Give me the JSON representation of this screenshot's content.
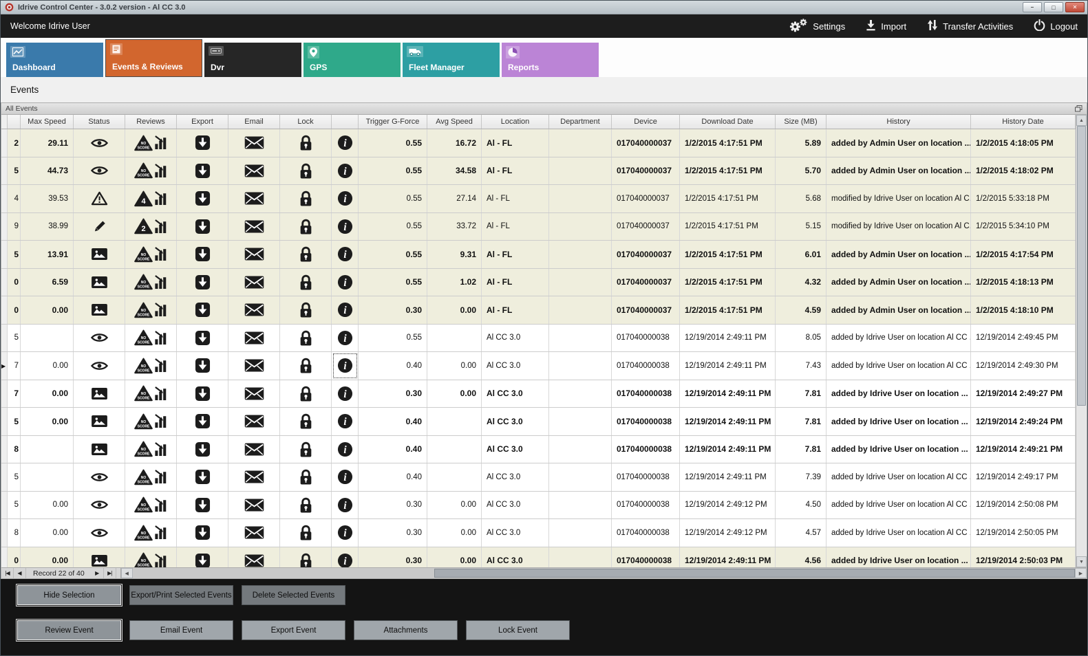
{
  "window": {
    "title": "Idrive Control Center - 3.0.2 version - Al CC 3.0"
  },
  "topbar": {
    "welcome": "Welcome Idrive User",
    "actions": [
      {
        "label": "Settings",
        "icon": "settings-gears-icon"
      },
      {
        "label": "Import",
        "icon": "import-icon"
      },
      {
        "label": "Transfer Activities",
        "icon": "transfer-icon"
      },
      {
        "label": "Logout",
        "icon": "power-icon"
      }
    ]
  },
  "tabs": [
    {
      "label": "Dashboard",
      "color": "#3a7aab",
      "active": false
    },
    {
      "label": "Events & Reviews",
      "color": "#d2662e",
      "active": true
    },
    {
      "label": "Dvr",
      "color": "#262626",
      "active": false
    },
    {
      "label": "GPS",
      "color": "#2fa98a",
      "active": false
    },
    {
      "label": "Fleet Manager",
      "color": "#2d9fa3",
      "active": false
    },
    {
      "label": "Reports",
      "color": "#bb84d6",
      "active": false
    }
  ],
  "page_title": "Events",
  "panel": {
    "title": "All Events"
  },
  "table": {
    "columns": [
      "Max Speed",
      "Status",
      "Reviews",
      "Export",
      "Email",
      "Lock",
      "",
      "Trigger G-Force",
      "Avg Speed",
      "Location",
      "Department",
      "Device",
      "Download Date",
      "Size (MB)",
      "History",
      "History Date"
    ],
    "rows": [
      {
        "e": "2",
        "max": "29.11",
        "st": "eye",
        "rv": "NO SCORE",
        "tg": "0.55",
        "avg": "16.72",
        "loc": "Al - FL",
        "dept": "",
        "dev": "017040000037",
        "dl": "1/2/2015 4:17:51 PM",
        "size": "5.89",
        "hist": "added by Admin User on location ...",
        "hd": "1/2/2015 4:18:05 PM",
        "bold": true,
        "beige": true,
        "cur": false
      },
      {
        "e": "5",
        "max": "44.73",
        "st": "eye",
        "rv": "NO SCORE",
        "tg": "0.55",
        "avg": "34.58",
        "loc": "Al - FL",
        "dept": "",
        "dev": "017040000037",
        "dl": "1/2/2015 4:17:51 PM",
        "size": "5.70",
        "hist": "added by Admin User on location ...",
        "hd": "1/2/2015 4:18:02 PM",
        "bold": true,
        "beige": true,
        "cur": false
      },
      {
        "e": "4",
        "max": "39.53",
        "st": "warning",
        "rv": "4",
        "tg": "0.55",
        "avg": "27.14",
        "loc": "Al - FL",
        "dept": "",
        "dev": "017040000037",
        "dl": "1/2/2015 4:17:51 PM",
        "size": "5.68",
        "hist": "modified by Idrive User on location Al C...",
        "hd": "1/2/2015 5:33:18 PM",
        "bold": false,
        "beige": true,
        "cur": false
      },
      {
        "e": "9",
        "max": "38.99",
        "st": "pencil",
        "rv": "2",
        "tg": "0.55",
        "avg": "33.72",
        "loc": "Al - FL",
        "dept": "",
        "dev": "017040000037",
        "dl": "1/2/2015 4:17:51 PM",
        "size": "5.15",
        "hist": "modified by Idrive User on location Al C...",
        "hd": "1/2/2015 5:34:10 PM",
        "bold": false,
        "beige": true,
        "cur": false
      },
      {
        "e": "5",
        "max": "13.91",
        "st": "image",
        "rv": "NO SCORE",
        "tg": "0.55",
        "avg": "9.31",
        "loc": "Al - FL",
        "dept": "",
        "dev": "017040000037",
        "dl": "1/2/2015 4:17:51 PM",
        "size": "6.01",
        "hist": "added by Admin User on location ...",
        "hd": "1/2/2015 4:17:54 PM",
        "bold": true,
        "beige": true,
        "cur": false
      },
      {
        "e": "0",
        "max": "6.59",
        "st": "image",
        "rv": "NO SCORE",
        "tg": "0.55",
        "avg": "1.02",
        "loc": "Al - FL",
        "dept": "",
        "dev": "017040000037",
        "dl": "1/2/2015 4:17:51 PM",
        "size": "4.32",
        "hist": "added by Admin User on location ...",
        "hd": "1/2/2015 4:18:13 PM",
        "bold": true,
        "beige": true,
        "cur": false
      },
      {
        "e": "0",
        "max": "0.00",
        "st": "image",
        "rv": "NO SCORE",
        "tg": "0.30",
        "avg": "0.00",
        "loc": "Al - FL",
        "dept": "",
        "dev": "017040000037",
        "dl": "1/2/2015 4:17:51 PM",
        "size": "4.59",
        "hist": "added by Admin User on location ...",
        "hd": "1/2/2015 4:18:10 PM",
        "bold": true,
        "beige": true,
        "cur": false
      },
      {
        "e": "5",
        "max": "",
        "st": "eye",
        "rv": "NO SCORE",
        "tg": "0.55",
        "avg": "",
        "loc": "Al CC 3.0",
        "dept": "",
        "dev": "017040000038",
        "dl": "12/19/2014 2:49:11 PM",
        "size": "8.05",
        "hist": "added by Idrive User on location Al CC ...",
        "hd": "12/19/2014 2:49:45 PM",
        "bold": false,
        "beige": false,
        "cur": false
      },
      {
        "e": "7",
        "max": "0.00",
        "st": "eye",
        "rv": "NO SCORE",
        "tg": "0.40",
        "avg": "0.00",
        "loc": "Al CC 3.0",
        "dept": "",
        "dev": "017040000038",
        "dl": "12/19/2014 2:49:11 PM",
        "size": "7.43",
        "hist": "added by Idrive User on location Al CC ...",
        "hd": "12/19/2014 2:49:30 PM",
        "bold": false,
        "beige": false,
        "cur": true
      },
      {
        "e": "7",
        "max": "0.00",
        "st": "image",
        "rv": "NO SCORE",
        "tg": "0.30",
        "avg": "0.00",
        "loc": "Al CC 3.0",
        "dept": "",
        "dev": "017040000038",
        "dl": "12/19/2014 2:49:11 PM",
        "size": "7.81",
        "hist": "added by Idrive User on location ...",
        "hd": "12/19/2014 2:49:27 PM",
        "bold": true,
        "beige": false,
        "cur": false
      },
      {
        "e": "5",
        "max": "0.00",
        "st": "image",
        "rv": "NO SCORE",
        "tg": "0.40",
        "avg": "",
        "loc": "Al CC 3.0",
        "dept": "",
        "dev": "017040000038",
        "dl": "12/19/2014 2:49:11 PM",
        "size": "7.81",
        "hist": "added by Idrive User on location ...",
        "hd": "12/19/2014 2:49:24 PM",
        "bold": true,
        "beige": false,
        "cur": false
      },
      {
        "e": "8",
        "max": "",
        "st": "image",
        "rv": "NO SCORE",
        "tg": "0.40",
        "avg": "",
        "loc": "Al CC 3.0",
        "dept": "",
        "dev": "017040000038",
        "dl": "12/19/2014 2:49:11 PM",
        "size": "7.81",
        "hist": "added by Idrive User on location ...",
        "hd": "12/19/2014 2:49:21 PM",
        "bold": true,
        "beige": false,
        "cur": false
      },
      {
        "e": "5",
        "max": "",
        "st": "eye",
        "rv": "NO SCORE",
        "tg": "0.40",
        "avg": "",
        "loc": "Al CC 3.0",
        "dept": "",
        "dev": "017040000038",
        "dl": "12/19/2014 2:49:11 PM",
        "size": "7.39",
        "hist": "added by Idrive User on location Al CC ...",
        "hd": "12/19/2014 2:49:17 PM",
        "bold": false,
        "beige": false,
        "cur": false
      },
      {
        "e": "5",
        "max": "0.00",
        "st": "eye",
        "rv": "NO SCORE",
        "tg": "0.30",
        "avg": "0.00",
        "loc": "Al CC 3.0",
        "dept": "",
        "dev": "017040000038",
        "dl": "12/19/2014 2:49:12 PM",
        "size": "4.50",
        "hist": "added by Idrive User on location Al CC ...",
        "hd": "12/19/2014 2:50:08 PM",
        "bold": false,
        "beige": false,
        "cur": false
      },
      {
        "e": "8",
        "max": "0.00",
        "st": "eye",
        "rv": "NO SCORE",
        "tg": "0.30",
        "avg": "0.00",
        "loc": "Al CC 3.0",
        "dept": "",
        "dev": "017040000038",
        "dl": "12/19/2014 2:49:12 PM",
        "size": "4.57",
        "hist": "added by Idrive User on location Al CC ...",
        "hd": "12/19/2014 2:50:05 PM",
        "bold": false,
        "beige": false,
        "cur": false
      },
      {
        "e": "0",
        "max": "0.00",
        "st": "image",
        "rv": "NO SCORE",
        "tg": "0.30",
        "avg": "0.00",
        "loc": "Al CC 3.0",
        "dept": "",
        "dev": "017040000038",
        "dl": "12/19/2014 2:49:11 PM",
        "size": "4.56",
        "hist": "added by Idrive User on location ...",
        "hd": "12/19/2014 2:50:03 PM",
        "bold": true,
        "beige": true,
        "cur": false
      }
    ]
  },
  "pager": {
    "record_label": "Record 22 of 40"
  },
  "action_bars": {
    "selection": [
      "Hide Selection",
      "Export/Print Selected Events",
      "Delete Selected  Events"
    ],
    "event": [
      "Review Event",
      "Email Event",
      "Export Event",
      "Attachments",
      "Lock Event"
    ]
  },
  "colors": {
    "row_highlight": "#efeedd",
    "topbar_bg": "#1d1d1d",
    "close_button": "#c04a37"
  }
}
